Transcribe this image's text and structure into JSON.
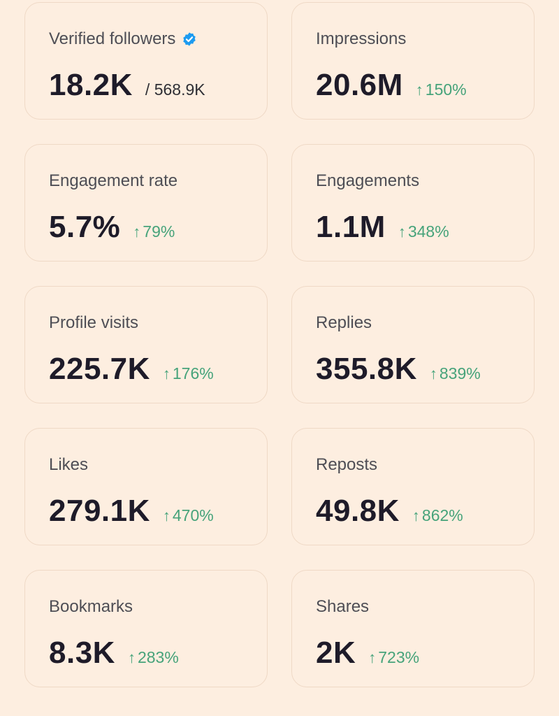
{
  "colors": {
    "background": "#fdeee0",
    "card_border": "#efd9c6",
    "label": "#4e4e55",
    "value": "#1e1b29",
    "positive": "#46a37a",
    "verified_badge": "#1d9bf0"
  },
  "arrow": "↑",
  "cards": [
    {
      "label": "Verified followers",
      "value": "18.2K",
      "total": "/ 568.9K",
      "icon": "verified-badge-icon"
    },
    {
      "label": "Impressions",
      "value": "20.6M",
      "change": "150%"
    },
    {
      "label": "Engagement rate",
      "value": "5.7%",
      "change": "79%"
    },
    {
      "label": "Engagements",
      "value": "1.1M",
      "change": "348%"
    },
    {
      "label": "Profile visits",
      "value": "225.7K",
      "change": "176%"
    },
    {
      "label": "Replies",
      "value": "355.8K",
      "change": "839%"
    },
    {
      "label": "Likes",
      "value": "279.1K",
      "change": "470%"
    },
    {
      "label": "Reposts",
      "value": "49.8K",
      "change": "862%"
    },
    {
      "label": "Bookmarks",
      "value": "8.3K",
      "change": "283%"
    },
    {
      "label": "Shares",
      "value": "2K",
      "change": "723%"
    }
  ]
}
